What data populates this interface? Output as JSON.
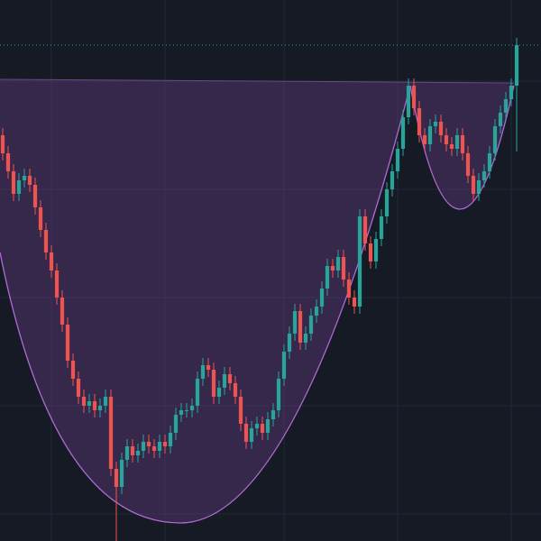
{
  "chart_data": {
    "type": "candlestick",
    "open": [
      450,
      430,
      410,
      385,
      400,
      405,
      395,
      370,
      345,
      320,
      300,
      270,
      240,
      200,
      180,
      160,
      150,
      155,
      145,
      150,
      160,
      80,
      60,
      90,
      105,
      95,
      100,
      110,
      105,
      100,
      110,
      105,
      120,
      140,
      145,
      145,
      150,
      180,
      195,
      190,
      160,
      170,
      185,
      175,
      160,
      130,
      110,
      125,
      130,
      120,
      135,
      145,
      180,
      210,
      230,
      255,
      220,
      230,
      250,
      260,
      280,
      305,
      300,
      315,
      290,
      270,
      260,
      360,
      330,
      310,
      335,
      360,
      390,
      410,
      435,
      470,
      505,
      480,
      450,
      440,
      460,
      465,
      450,
      440,
      435,
      450,
      430,
      405,
      385,
      400,
      410,
      430,
      460,
      475,
      490,
      505
    ],
    "high": [
      458,
      438,
      418,
      408,
      413,
      413,
      403,
      378,
      353,
      328,
      308,
      278,
      248,
      208,
      188,
      168,
      163,
      163,
      158,
      168,
      168,
      88,
      98,
      113,
      113,
      108,
      118,
      118,
      113,
      118,
      118,
      128,
      148,
      153,
      153,
      158,
      188,
      203,
      203,
      198,
      178,
      193,
      193,
      183,
      168,
      138,
      133,
      138,
      138,
      143,
      153,
      188,
      218,
      238,
      263,
      263,
      238,
      258,
      268,
      288,
      313,
      313,
      323,
      323,
      298,
      278,
      368,
      368,
      338,
      343,
      368,
      398,
      418,
      443,
      478,
      513,
      513,
      488,
      458,
      468,
      473,
      473,
      458,
      448,
      458,
      458,
      438,
      413,
      408,
      418,
      438,
      468,
      483,
      498,
      513,
      558
    ],
    "low": [
      422,
      402,
      377,
      377,
      392,
      387,
      362,
      337,
      312,
      292,
      262,
      232,
      192,
      172,
      152,
      142,
      142,
      137,
      137,
      142,
      72,
      0,
      52,
      82,
      87,
      87,
      92,
      97,
      92,
      92,
      97,
      97,
      112,
      132,
      137,
      137,
      142,
      172,
      182,
      152,
      152,
      162,
      167,
      152,
      122,
      102,
      102,
      117,
      112,
      112,
      127,
      137,
      172,
      202,
      222,
      212,
      212,
      222,
      242,
      252,
      272,
      292,
      292,
      282,
      262,
      252,
      252,
      322,
      302,
      302,
      327,
      352,
      382,
      402,
      427,
      462,
      472,
      442,
      432,
      432,
      452,
      442,
      432,
      427,
      427,
      422,
      397,
      377,
      377,
      392,
      402,
      422,
      452,
      467,
      482,
      432
    ],
    "close": [
      430,
      410,
      385,
      400,
      405,
      395,
      370,
      345,
      320,
      300,
      270,
      240,
      200,
      180,
      160,
      150,
      155,
      145,
      150,
      160,
      80,
      60,
      90,
      105,
      95,
      100,
      110,
      105,
      100,
      110,
      105,
      120,
      140,
      145,
      145,
      150,
      180,
      195,
      190,
      160,
      170,
      185,
      175,
      160,
      130,
      110,
      125,
      130,
      120,
      135,
      145,
      180,
      210,
      230,
      255,
      220,
      230,
      250,
      260,
      280,
      305,
      300,
      315,
      290,
      270,
      260,
      360,
      330,
      310,
      335,
      360,
      390,
      410,
      435,
      470,
      505,
      480,
      450,
      440,
      460,
      465,
      450,
      440,
      435,
      450,
      430,
      405,
      385,
      400,
      410,
      430,
      460,
      475,
      490,
      505,
      550
    ],
    "up_color": "#26a69a",
    "down_color": "#ef5350",
    "xlim": [
      -0.5,
      99.5
    ],
    "xticks": [
      9,
      30,
      52,
      73,
      94
    ],
    "ylim": [
      0,
      600
    ],
    "yticks": [
      30,
      150,
      270,
      390,
      510
    ],
    "grid": true
  }
}
